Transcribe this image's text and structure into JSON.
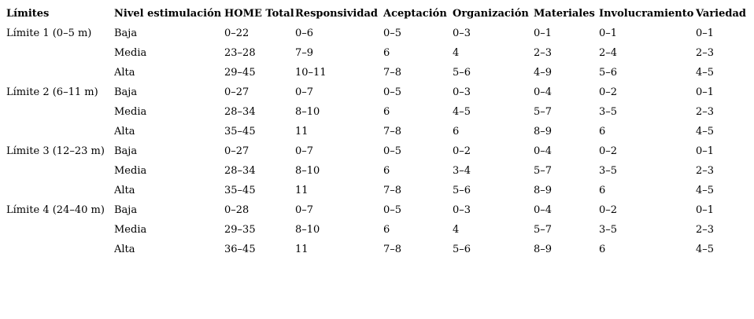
{
  "table": {
    "columns": [
      "Límites",
      "Nivel estimulación",
      "HOME Total",
      "Responsividad",
      "Aceptación",
      "Organización",
      "Materiales",
      "Involucramiento",
      "Variedad"
    ],
    "groups": [
      {
        "limit": "Límite 1 (0–5 m)",
        "rows": [
          {
            "nivel": "Baja",
            "cells": [
              "0–22",
              "0–6",
              "0–5",
              "0–3",
              "0–1",
              "0–1",
              "0–1"
            ]
          },
          {
            "nivel": "Media",
            "cells": [
              "23–28",
              "7–9",
              "6",
              "4",
              "2–3",
              "2–4",
              "2–3"
            ]
          },
          {
            "nivel": "Alta",
            "cells": [
              "29–45",
              "10–11",
              "7–8",
              "5–6",
              "4–9",
              "5–6",
              "4–5"
            ]
          }
        ]
      },
      {
        "limit": "Límite 2 (6–11 m)",
        "rows": [
          {
            "nivel": "Baja",
            "cells": [
              "0–27",
              "0–7",
              "0–5",
              "0–3",
              "0–4",
              "0–2",
              "0–1"
            ]
          },
          {
            "nivel": "Media",
            "cells": [
              "28–34",
              "8–10",
              "6",
              "4–5",
              "5–7",
              "3–5",
              "2–3"
            ]
          },
          {
            "nivel": "Alta",
            "cells": [
              "35–45",
              "11",
              "7–8",
              "6",
              "8–9",
              "6",
              "4–5"
            ]
          }
        ]
      },
      {
        "limit": "Límite 3 (12–23 m)",
        "rows": [
          {
            "nivel": "Baja",
            "cells": [
              "0–27",
              "0–7",
              "0–5",
              "0–2",
              "0–4",
              "0–2",
              "0–1"
            ]
          },
          {
            "nivel": "Media",
            "cells": [
              "28–34",
              "8–10",
              "6",
              "3–4",
              "5–7",
              "3–5",
              "2–3"
            ]
          },
          {
            "nivel": "Alta",
            "cells": [
              "35–45",
              "11",
              "7–8",
              "5–6",
              "8–9",
              "6",
              "4–5"
            ]
          }
        ]
      },
      {
        "limit": "Límite 4 (24–40 m)",
        "rows": [
          {
            "nivel": "Baja",
            "cells": [
              "0–28",
              "0–7",
              "0–5",
              "0–3",
              "0–4",
              "0–2",
              "0–1"
            ]
          },
          {
            "nivel": "Media",
            "cells": [
              "29–35",
              "8–10",
              "6",
              "4",
              "5–7",
              "3–5",
              "2–3"
            ]
          },
          {
            "nivel": "Alta",
            "cells": [
              "36–45",
              "11",
              "7–8",
              "5–6",
              "8–9",
              "6",
              "4–5"
            ]
          }
        ]
      }
    ]
  },
  "chart_data": {
    "type": "table",
    "title": "",
    "columns": [
      "Límites",
      "Nivel estimulación",
      "HOME Total",
      "Responsividad",
      "Aceptación",
      "Organización",
      "Materiales",
      "Involucramiento",
      "Variedad"
    ],
    "rows": [
      [
        "Límite 1 (0–5 m)",
        "Baja",
        "0–22",
        "0–6",
        "0–5",
        "0–3",
        "0–1",
        "0–1",
        "0–1"
      ],
      [
        "",
        "Media",
        "23–28",
        "7–9",
        "6",
        "4",
        "2–3",
        "2–4",
        "2–3"
      ],
      [
        "",
        "Alta",
        "29–45",
        "10–11",
        "7–8",
        "5–6",
        "4–9",
        "5–6",
        "4–5"
      ],
      [
        "Límite 2 (6–11 m)",
        "Baja",
        "0–27",
        "0–7",
        "0–5",
        "0–3",
        "0–4",
        "0–2",
        "0–1"
      ],
      [
        "",
        "Media",
        "28–34",
        "8–10",
        "6",
        "4–5",
        "5–7",
        "3–5",
        "2–3"
      ],
      [
        "",
        "Alta",
        "35–45",
        "11",
        "7–8",
        "6",
        "8–9",
        "6",
        "4–5"
      ],
      [
        "Límite 3 (12–23 m)",
        "Baja",
        "0–27",
        "0–7",
        "0–5",
        "0–2",
        "0–4",
        "0–2",
        "0–1"
      ],
      [
        "",
        "Media",
        "28–34",
        "8–10",
        "6",
        "3–4",
        "5–7",
        "3–5",
        "2–3"
      ],
      [
        "",
        "Alta",
        "35–45",
        "11",
        "7–8",
        "5–6",
        "8–9",
        "6",
        "4–5"
      ],
      [
        "Límite 4 (24–40 m)",
        "Baja",
        "0–28",
        "0–7",
        "0–5",
        "0–3",
        "0–4",
        "0–2",
        "0–1"
      ],
      [
        "",
        "Media",
        "29–35",
        "8–10",
        "6",
        "4",
        "5–7",
        "3–5",
        "2–3"
      ],
      [
        "",
        "Alta",
        "36–45",
        "11",
        "7–8",
        "5–6",
        "8–9",
        "6",
        "4–5"
      ]
    ],
    "text_color": "#000000",
    "background_color": "#ffffff"
  }
}
